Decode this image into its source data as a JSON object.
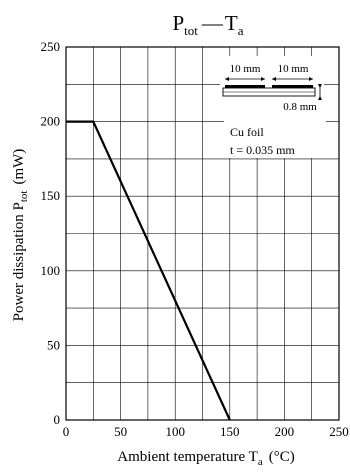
{
  "chart_data": {
    "type": "line",
    "title": {
      "main": "P",
      "main_sub": "tot",
      "dash": "—",
      "var": "T",
      "var_sub": "a"
    },
    "xlabel": {
      "prefix": "Ambient temperature  T",
      "sub": "a",
      "suffix": "(°C)"
    },
    "ylabel": {
      "prefix": "Power dissipation  P",
      "sub": "tot",
      "suffix": "(mW)"
    },
    "xlim": [
      0,
      250
    ],
    "ylim": [
      0,
      250
    ],
    "x_ticks": [
      "0",
      "50",
      "100",
      "150",
      "200",
      "250"
    ],
    "y_ticks": [
      "0",
      "50",
      "100",
      "150",
      "200",
      "250"
    ],
    "x_tick_values": [
      0,
      50,
      100,
      150,
      200,
      250
    ],
    "y_tick_values": [
      0,
      50,
      100,
      150,
      200,
      250
    ],
    "grid": true,
    "series": [
      {
        "x": [
          0,
          25,
          150
        ],
        "y": [
          200,
          200,
          0
        ],
        "color": "#000000"
      }
    ],
    "annotations": {
      "dim_left": "10 mm",
      "dim_right": "10 mm",
      "dim_thickness": "0.8 mm",
      "foil_line1": "Cu foil",
      "foil_line2": "t = 0.035 mm"
    }
  }
}
